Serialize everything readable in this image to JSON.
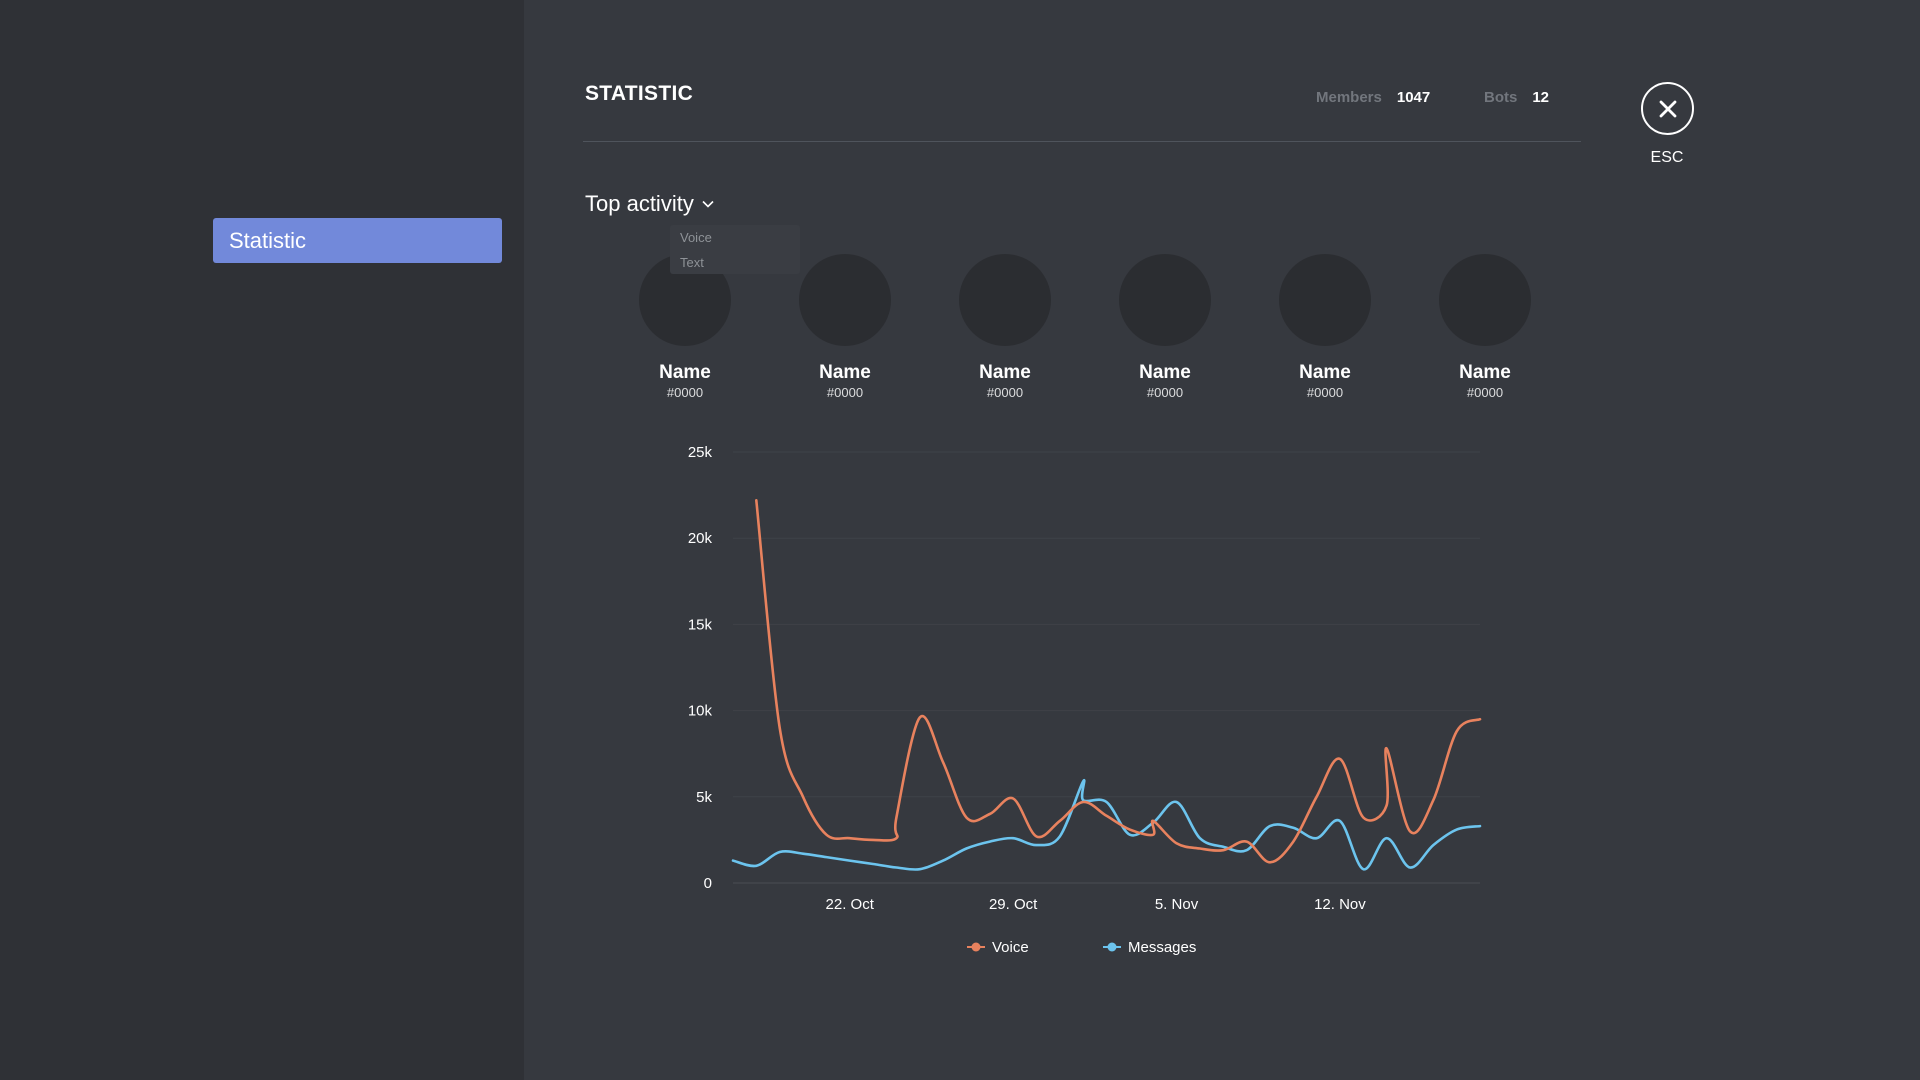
{
  "sidebar": {
    "items": [
      {
        "label": "Statistic"
      }
    ]
  },
  "header": {
    "title": "STATISTIC",
    "members_label": "Members",
    "members_value": "1047",
    "bots_label": "Bots",
    "bots_value": "12",
    "esc_label": "ESC"
  },
  "top_activity": {
    "label": "Top activity",
    "options": [
      "Voice",
      "Text"
    ]
  },
  "users": [
    {
      "name": "Name",
      "tag": "#0000"
    },
    {
      "name": "Name",
      "tag": "#0000"
    },
    {
      "name": "Name",
      "tag": "#0000"
    },
    {
      "name": "Name",
      "tag": "#0000"
    },
    {
      "name": "Name",
      "tag": "#0000"
    },
    {
      "name": "Name",
      "tag": "#0000"
    }
  ],
  "chart_data": {
    "type": "line",
    "x_type": "date",
    "x_ticks": [
      {
        "label": "22. Oct",
        "date": "2019-10-22"
      },
      {
        "label": "29. Oct",
        "date": "2019-10-29"
      },
      {
        "label": "5. Nov",
        "date": "2019-11-05"
      },
      {
        "label": "12. Nov",
        "date": "2019-11-12"
      }
    ],
    "y_ticks": [
      0,
      5000,
      10000,
      15000,
      20000,
      25000
    ],
    "y_tick_labels": [
      "0",
      "5k",
      "10k",
      "15k",
      "20k",
      "25k"
    ],
    "ylim": [
      0,
      25000
    ],
    "xlim": [
      "2019-10-17",
      "2019-11-18"
    ],
    "grid": true,
    "legend_position": "bottom",
    "series": [
      {
        "name": "Voice",
        "color": "#e8825e",
        "points": [
          [
            "2019-10-18",
            22200
          ],
          [
            "2019-10-19",
            9000
          ],
          [
            "2019-10-20",
            5000
          ],
          [
            "2019-10-21",
            2800
          ],
          [
            "2019-10-22",
            2600
          ],
          [
            "2019-10-23",
            2500
          ],
          [
            "2019-10-24",
            2600
          ],
          [
            "2019-10-24",
            3800
          ],
          [
            "2019-10-25",
            9600
          ],
          [
            "2019-10-26",
            7000
          ],
          [
            "2019-10-27",
            3800
          ],
          [
            "2019-10-28",
            4000
          ],
          [
            "2019-10-29",
            4900
          ],
          [
            "2019-10-30",
            2700
          ],
          [
            "2019-10-31",
            3600
          ],
          [
            "2019-11-01",
            4700
          ],
          [
            "2019-11-02",
            3900
          ],
          [
            "2019-11-03",
            3100
          ],
          [
            "2019-11-04",
            2800
          ],
          [
            "2019-11-04",
            3600
          ],
          [
            "2019-11-05",
            2300
          ],
          [
            "2019-11-06",
            2000
          ],
          [
            "2019-11-07",
            1900
          ],
          [
            "2019-11-08",
            2400
          ],
          [
            "2019-11-09",
            1200
          ],
          [
            "2019-11-10",
            2400
          ],
          [
            "2019-11-11",
            5000
          ],
          [
            "2019-11-12",
            7200
          ],
          [
            "2019-11-13",
            3800
          ],
          [
            "2019-11-14",
            4500
          ],
          [
            "2019-11-14",
            7800
          ],
          [
            "2019-11-15",
            3000
          ],
          [
            "2019-11-16",
            4800
          ],
          [
            "2019-11-17",
            8800
          ],
          [
            "2019-11-18",
            9500
          ]
        ]
      },
      {
        "name": "Messages",
        "color": "#6cc4ee",
        "points": [
          [
            "2019-10-17",
            1300
          ],
          [
            "2019-10-18",
            1000
          ],
          [
            "2019-10-19",
            1800
          ],
          [
            "2019-10-20",
            1700
          ],
          [
            "2019-10-21",
            1500
          ],
          [
            "2019-10-22",
            1300
          ],
          [
            "2019-10-23",
            1100
          ],
          [
            "2019-10-24",
            900
          ],
          [
            "2019-10-25",
            800
          ],
          [
            "2019-10-26",
            1300
          ],
          [
            "2019-10-27",
            2000
          ],
          [
            "2019-10-28",
            2400
          ],
          [
            "2019-10-29",
            2600
          ],
          [
            "2019-10-30",
            2200
          ],
          [
            "2019-10-31",
            2700
          ],
          [
            "2019-11-01",
            5900
          ],
          [
            "2019-11-01",
            4800
          ],
          [
            "2019-11-02",
            4700
          ],
          [
            "2019-11-03",
            2800
          ],
          [
            "2019-11-04",
            3500
          ],
          [
            "2019-11-05",
            4700
          ],
          [
            "2019-11-06",
            2600
          ],
          [
            "2019-11-07",
            2100
          ],
          [
            "2019-11-08",
            1900
          ],
          [
            "2019-11-09",
            3300
          ],
          [
            "2019-11-10",
            3200
          ],
          [
            "2019-11-11",
            2600
          ],
          [
            "2019-11-12",
            3600
          ],
          [
            "2019-11-13",
            800
          ],
          [
            "2019-11-14",
            2600
          ],
          [
            "2019-11-15",
            900
          ],
          [
            "2019-11-16",
            2200
          ],
          [
            "2019-11-17",
            3100
          ],
          [
            "2019-11-18",
            3300
          ]
        ]
      }
    ],
    "legend": [
      "Voice",
      "Messages"
    ]
  }
}
